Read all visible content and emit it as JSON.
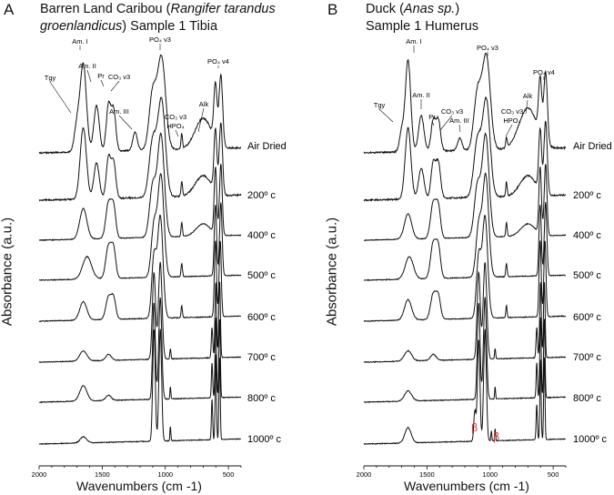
{
  "chart_data": [
    {
      "type": "line",
      "panel_letter": "A",
      "title_line1_pre": "Barren Land Caribou (",
      "title_line1_italic": "Rangifer tarandus",
      "title_line2_italic": "groenlandicus",
      "title_line2_post": ") Sample 1 Tibia",
      "xlabel": "Wavenumbers (cm -1)",
      "ylabel": "Absorbance (a.u.)",
      "xlim": [
        2000,
        400
      ],
      "x_reversed": true,
      "xticks": [
        "2000",
        "1500",
        "1000",
        "500"
      ],
      "annotations": [
        "Tgy",
        "Am. I",
        "Am. II",
        "Pr",
        "CO₃ v3",
        "Am. III",
        "PO₄ v3",
        "CO₃ v3",
        "HPO₄",
        "Alk",
        "PO₄ v4"
      ],
      "series": [
        {
          "name": "Air Dried",
          "peaks": [
            [
              1700,
              0.25,
              30
            ],
            [
              1650,
              0.85,
              35
            ],
            [
              1545,
              0.45,
              30
            ],
            [
              1450,
              0.45,
              25
            ],
            [
              1410,
              0.4,
              25
            ],
            [
              1240,
              0.18,
              25
            ],
            [
              1100,
              0.55,
              40
            ],
            [
              1030,
              0.9,
              45
            ],
            [
              870,
              0.15,
              8
            ],
            [
              700,
              0.3,
              90
            ],
            [
              603,
              0.55,
              18
            ],
            [
              560,
              0.7,
              20
            ]
          ]
        },
        {
          "name": "200º c",
          "peaks": [
            [
              1650,
              0.7,
              35
            ],
            [
              1545,
              0.35,
              30
            ],
            [
              1450,
              0.4,
              25
            ],
            [
              1410,
              0.35,
              25
            ],
            [
              1100,
              0.55,
              40
            ],
            [
              1030,
              0.95,
              42
            ],
            [
              870,
              0.15,
              8
            ],
            [
              700,
              0.2,
              90
            ],
            [
              603,
              0.6,
              16
            ],
            [
              560,
              0.7,
              18
            ]
          ]
        },
        {
          "name": "400º c",
          "peaks": [
            [
              1650,
              0.3,
              40
            ],
            [
              1450,
              0.35,
              30
            ],
            [
              1410,
              0.3,
              25
            ],
            [
              1100,
              0.5,
              35
            ],
            [
              1035,
              1.0,
              38
            ],
            [
              870,
              0.14,
              8
            ],
            [
              700,
              0.12,
              80
            ],
            [
              603,
              0.65,
              14
            ],
            [
              560,
              0.7,
              15
            ]
          ]
        },
        {
          "name": "500º c",
          "peaks": [
            [
              1620,
              0.22,
              50
            ],
            [
              1450,
              0.32,
              30
            ],
            [
              1410,
              0.28,
              25
            ],
            [
              1090,
              0.5,
              30
            ],
            [
              1035,
              1.0,
              34
            ],
            [
              870,
              0.13,
              8
            ],
            [
              603,
              0.7,
              13
            ],
            [
              560,
              0.72,
              14
            ]
          ]
        },
        {
          "name": "600º c",
          "peaks": [
            [
              1650,
              0.18,
              40
            ],
            [
              1450,
              0.22,
              30
            ],
            [
              1410,
              0.2,
              25
            ],
            [
              1090,
              0.6,
              25
            ],
            [
              1040,
              1.0,
              30
            ],
            [
              870,
              0.12,
              7
            ],
            [
              603,
              0.75,
              12
            ],
            [
              565,
              0.75,
              12
            ]
          ]
        },
        {
          "name": "700º c",
          "peaks": [
            [
              1650,
              0.1,
              40
            ],
            [
              1450,
              0.06,
              30
            ],
            [
              1090,
              0.85,
              18
            ],
            [
              1040,
              0.95,
              20
            ],
            [
              960,
              0.1,
              6
            ],
            [
              630,
              0.3,
              8
            ],
            [
              600,
              0.75,
              9
            ],
            [
              570,
              0.75,
              9
            ]
          ]
        },
        {
          "name": "800º c",
          "peaks": [
            [
              1650,
              0.15,
              40
            ],
            [
              1450,
              0.05,
              30
            ],
            [
              1090,
              0.95,
              15
            ],
            [
              1040,
              1.0,
              17
            ],
            [
              960,
              0.12,
              5
            ],
            [
              630,
              0.35,
              7
            ],
            [
              600,
              0.8,
              8
            ],
            [
              570,
              0.78,
              8
            ]
          ]
        },
        {
          "name": "1000º c",
          "peaks": [
            [
              1650,
              0.06,
              35
            ],
            [
              1090,
              1.1,
              14
            ],
            [
              1040,
              1.1,
              15
            ],
            [
              960,
              0.14,
              5
            ],
            [
              630,
              0.4,
              7
            ],
            [
              600,
              0.85,
              7
            ],
            [
              570,
              0.82,
              7
            ]
          ]
        }
      ]
    },
    {
      "type": "line",
      "panel_letter": "B",
      "title_line1_pre": "Duck  (",
      "title_line1_italic": "Anas sp.",
      "title_line1_post": ")",
      "title_line2_post": "Sample 1 Humerus",
      "xlabel": "Wavenumbers (cm -1)",
      "ylabel": "Absorbance (a.u.)",
      "xlim": [
        2000,
        400
      ],
      "x_reversed": true,
      "xticks": [
        "2000",
        "1500",
        "1000",
        "500"
      ],
      "annotations": [
        "Tgy",
        "Am. I",
        "Am. II",
        "Pr",
        "CO₃ v3",
        "Am. III",
        "PO₄ v3",
        "CO₃ v3",
        "HPO₄",
        "Alk",
        "PO₄ v4"
      ],
      "beta_labels": [
        "β",
        "β"
      ],
      "series": [
        {
          "name": "Air Dried",
          "peaks": [
            [
              1700,
              0.2,
              25
            ],
            [
              1650,
              0.9,
              30
            ],
            [
              1545,
              0.35,
              30
            ],
            [
              1450,
              0.3,
              25
            ],
            [
              1410,
              0.3,
              25
            ],
            [
              1240,
              0.12,
              25
            ],
            [
              1100,
              0.55,
              40
            ],
            [
              1030,
              0.92,
              45
            ],
            [
              870,
              0.1,
              8
            ],
            [
              700,
              0.4,
              100
            ],
            [
              603,
              0.55,
              18
            ],
            [
              560,
              0.7,
              20
            ]
          ]
        },
        {
          "name": "200º c",
          "peaks": [
            [
              1650,
              0.7,
              32
            ],
            [
              1545,
              0.3,
              30
            ],
            [
              1450,
              0.35,
              25
            ],
            [
              1410,
              0.35,
              25
            ],
            [
              1100,
              0.55,
              40
            ],
            [
              1030,
              0.95,
              42
            ],
            [
              870,
              0.14,
              8
            ],
            [
              700,
              0.2,
              90
            ],
            [
              603,
              0.6,
              16
            ],
            [
              560,
              0.72,
              18
            ]
          ]
        },
        {
          "name": "400º c",
          "peaks": [
            [
              1650,
              0.25,
              40
            ],
            [
              1450,
              0.35,
              30
            ],
            [
              1410,
              0.3,
              25
            ],
            [
              1100,
              0.5,
              35
            ],
            [
              1035,
              1.0,
              38
            ],
            [
              870,
              0.14,
              8
            ],
            [
              700,
              0.12,
              80
            ],
            [
              603,
              0.65,
              14
            ],
            [
              560,
              0.7,
              15
            ]
          ]
        },
        {
          "name": "500º c",
          "peaks": [
            [
              1640,
              0.22,
              45
            ],
            [
              1450,
              0.35,
              30
            ],
            [
              1410,
              0.3,
              25
            ],
            [
              1090,
              0.5,
              30
            ],
            [
              1035,
              1.0,
              34
            ],
            [
              870,
              0.13,
              8
            ],
            [
              603,
              0.7,
              13
            ],
            [
              560,
              0.72,
              14
            ]
          ]
        },
        {
          "name": "600º c",
          "peaks": [
            [
              1650,
              0.2,
              40
            ],
            [
              1450,
              0.25,
              30
            ],
            [
              1410,
              0.22,
              25
            ],
            [
              1090,
              0.6,
              25
            ],
            [
              1040,
              1.0,
              30
            ],
            [
              870,
              0.12,
              7
            ],
            [
              603,
              0.75,
              12
            ],
            [
              565,
              0.75,
              12
            ]
          ]
        },
        {
          "name": "700º c",
          "peaks": [
            [
              1650,
              0.1,
              40
            ],
            [
              1450,
              0.06,
              30
            ],
            [
              1090,
              0.85,
              18
            ],
            [
              1040,
              0.95,
              20
            ],
            [
              960,
              0.1,
              6
            ],
            [
              630,
              0.3,
              8
            ],
            [
              600,
              0.75,
              9
            ],
            [
              570,
              0.75,
              9
            ]
          ]
        },
        {
          "name": "800º c",
          "peaks": [
            [
              1650,
              0.1,
              40
            ],
            [
              1090,
              0.95,
              15
            ],
            [
              1040,
              1.0,
              17
            ],
            [
              960,
              0.12,
              5
            ],
            [
              630,
              0.35,
              7
            ],
            [
              600,
              0.8,
              8
            ],
            [
              570,
              0.78,
              8
            ]
          ]
        },
        {
          "name": "1000º c",
          "peaks": [
            [
              1650,
              0.15,
              35
            ],
            [
              1120,
              0.3,
              12
            ],
            [
              1090,
              1.0,
              14
            ],
            [
              1040,
              1.1,
              15
            ],
            [
              990,
              0.1,
              5
            ],
            [
              960,
              0.12,
              5
            ],
            [
              630,
              0.35,
              7
            ],
            [
              600,
              0.8,
              7
            ],
            [
              570,
              0.82,
              7
            ]
          ]
        }
      ]
    }
  ],
  "colors": {
    "line": "#111111",
    "beta": "#e0302a"
  }
}
